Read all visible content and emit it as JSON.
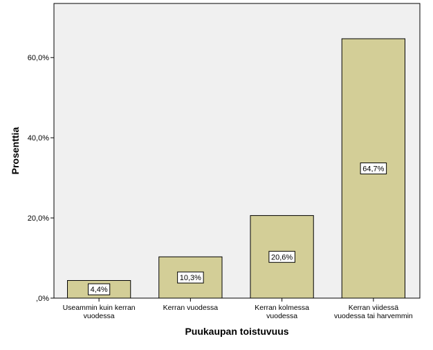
{
  "chart_data": {
    "type": "bar",
    "categories": [
      [
        "Useammin kuin kerran",
        "vuodessa"
      ],
      [
        "Kerran vuodessa"
      ],
      [
        "Kerran kolmessa",
        "vuodessa"
      ],
      [
        "Kerran viidessä",
        "vuodessa tai harvemmin"
      ]
    ],
    "values": [
      4.4,
      10.3,
      20.6,
      64.7
    ],
    "data_labels": [
      "4,4%",
      "10,3%",
      "20,6%",
      "64,7%"
    ],
    "xlabel": "Puukaupan toistuvuus",
    "ylabel": "Prosenttia",
    "ylim": [
      0,
      73.5
    ],
    "yticks": [
      {
        "value": 0,
        "label": ",0%"
      },
      {
        "value": 20,
        "label": "20,0%"
      },
      {
        "value": 40,
        "label": "40,0%"
      },
      {
        "value": 60,
        "label": "60,0%"
      }
    ],
    "grid": false,
    "legend": "none"
  },
  "colors": {
    "plot_background": "#f0f0f0",
    "bar_fill": "#d3ce97",
    "bar_stroke": "#000000",
    "axis": "#000000",
    "label_box": "#ffffff"
  }
}
